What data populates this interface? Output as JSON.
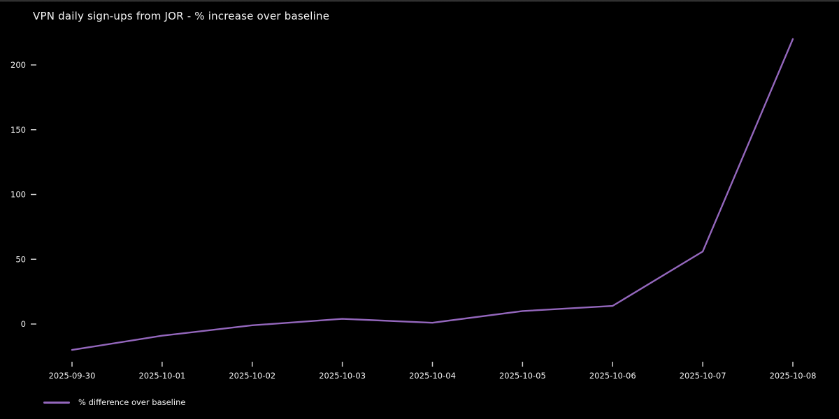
{
  "title": "VPN daily sign-ups from JOR - % increase over baseline",
  "colors": {
    "background": "#000000",
    "line": "#9467bd",
    "tick_text": "#f2f2f2",
    "tick_mark": "#cfcfcf"
  },
  "chart_data": {
    "type": "line",
    "title": "VPN daily sign-ups from JOR - % increase over baseline",
    "x": [
      "2025-09-30",
      "2025-10-01",
      "2025-10-02",
      "2025-10-03",
      "2025-10-04",
      "2025-10-05",
      "2025-10-06",
      "2025-10-07",
      "2025-10-08"
    ],
    "series": [
      {
        "name": "% difference over baseline",
        "values": [
          -20,
          -9,
          -1,
          4,
          1,
          10,
          14,
          56,
          220
        ],
        "color": "#9467bd"
      }
    ],
    "xlabel": "",
    "ylabel": "",
    "yticks": [
      0,
      50,
      100,
      150,
      200
    ],
    "ylim": [
      -35,
      230
    ],
    "grid": false,
    "legend_position": "lower-left",
    "background": "black"
  }
}
